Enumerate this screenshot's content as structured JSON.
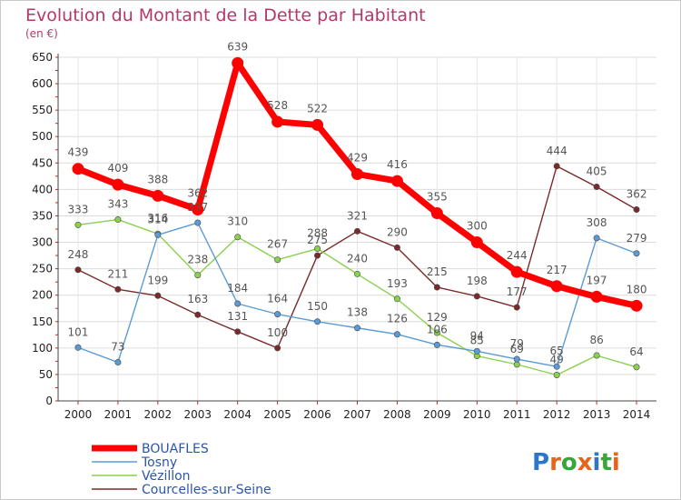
{
  "chart_data": {
    "type": "line",
    "title": "Evolution du Montant de la Dette par Habitant",
    "subtitle": "(en €)",
    "xlabel": "",
    "ylabel": "",
    "ylim": [
      0,
      650
    ],
    "yticks": [
      0,
      50,
      100,
      150,
      200,
      250,
      300,
      350,
      400,
      450,
      500,
      550,
      600,
      650
    ],
    "x": [
      "2000",
      "2001",
      "2002",
      "2003",
      "2004",
      "2005",
      "2006",
      "2007",
      "2008",
      "2009",
      "2010",
      "2011",
      "2012",
      "2013",
      "2014"
    ],
    "grid": true,
    "legend_position": "bottom-left",
    "series": [
      {
        "name": "BOUAFLES",
        "color": "#ff0000",
        "values": [
          439,
          409,
          388,
          362,
          639,
          528,
          522,
          429,
          416,
          355,
          300,
          244,
          217,
          197,
          180
        ]
      },
      {
        "name": "Tosny",
        "color": "#5b9bd5",
        "values": [
          101,
          73,
          314,
          337,
          184,
          164,
          150,
          138,
          126,
          106,
          94,
          79,
          65,
          308,
          279
        ]
      },
      {
        "name": "Vézillon",
        "color": "#8bd14f",
        "values": [
          333,
          343,
          316,
          238,
          310,
          267,
          288,
          240,
          193,
          129,
          85,
          69,
          49,
          86,
          64
        ]
      },
      {
        "name": "Courcelles-sur-Seine",
        "color": "#7a2a2a",
        "values": [
          248,
          211,
          199,
          163,
          131,
          100,
          275,
          321,
          290,
          215,
          198,
          177,
          444,
          405,
          362
        ]
      }
    ]
  },
  "logo": {
    "text": "Proxiti",
    "letters": [
      "P",
      "r",
      "o",
      "x",
      "i",
      "t",
      "i"
    ],
    "colors": [
      "#2e75c8",
      "#e8641c",
      "#3aa53a",
      "#e8641c",
      "#2e75c8",
      "#3aa53a",
      "#e8641c"
    ]
  }
}
